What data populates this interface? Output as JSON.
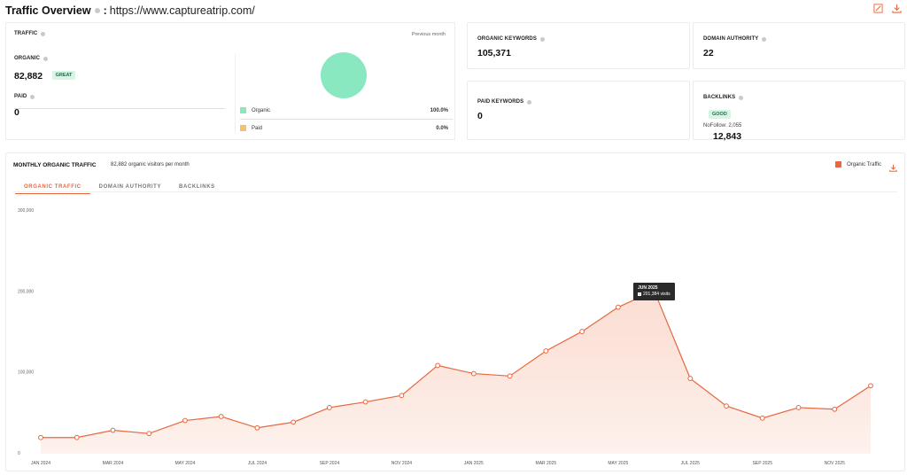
{
  "header": {
    "title": "Traffic Overview",
    "url": "https://www.captureatrip.com/"
  },
  "icons": {
    "edit": "edit-icon",
    "download": "download-icon",
    "info": "info-icon"
  },
  "colors": {
    "accent": "#e8673e",
    "organic": "#8ae8c1",
    "paid": "#f5c26b"
  },
  "traffic": {
    "label": "TRAFFIC",
    "previous_month": "Previous month",
    "organic_label": "ORGANIC",
    "organic_value": "82,882",
    "organic_badge": "GREAT",
    "paid_label": "PAID",
    "paid_value": "0",
    "legend": [
      {
        "name": "Organic",
        "pct": "100.0%"
      },
      {
        "name": "Paid",
        "pct": "0.0%"
      }
    ]
  },
  "metrics": {
    "organic_keywords": {
      "label": "ORGANIC KEYWORDS",
      "value": "105,371"
    },
    "domain_authority": {
      "label": "DOMAIN AUTHORITY",
      "value": "22"
    },
    "paid_keywords": {
      "label": "PAID KEYWORDS",
      "value": "0"
    },
    "backlinks": {
      "label": "BACKLINKS",
      "value": "12,843",
      "badge": "GOOD",
      "nofollow": "NoFollow: 2,055"
    }
  },
  "monthly": {
    "title": "MONTHLY ORGANIC TRAFFIC",
    "subtitle": "82,882 organic visitors per month",
    "legend": "Organic Traffic",
    "tabs": [
      "ORGANIC TRAFFIC",
      "DOMAIN AUTHORITY",
      "BACKLINKS"
    ],
    "tooltip": {
      "month": "JUN 2025",
      "value": "201,384 visits"
    }
  },
  "chart_data": {
    "type": "area",
    "series": [
      {
        "name": "Organic Traffic",
        "values": [
          20000,
          20000,
          29000,
          25000,
          41000,
          46000,
          32000,
          39000,
          57000,
          64000,
          72000,
          109000,
          99000,
          96000,
          127000,
          151000,
          181000,
          201384,
          93000,
          59000,
          44000,
          57000,
          55000,
          84000
        ]
      }
    ],
    "x": [
      "JAN 2024",
      "FEB 2024",
      "MAR 2024",
      "APR 2024",
      "MAY 2024",
      "JUN 2024",
      "JUL 2024",
      "AUG 2024",
      "SEP 2024",
      "OCT 2024",
      "NOV 2024",
      "DEC 2024",
      "JAN 2025",
      "FEB 2025",
      "MAR 2025",
      "APR 2025",
      "MAY 2025",
      "JUN 2025",
      "JUL 2025",
      "AUG 2025",
      "SEP 2025",
      "OCT 2025",
      "NOV 2025",
      "DEC 2025"
    ],
    "x_tick_labels": [
      "JAN 2024",
      "MAR 2024",
      "MAY 2024",
      "JUL 2024",
      "SEP 2024",
      "NOV 2024",
      "JAN 2025",
      "MAR 2025",
      "MAY 2025",
      "JUL 2025",
      "SEP 2025",
      "NOV 2025"
    ],
    "y_tick_labels": [
      "0",
      "100,000",
      "200,000",
      "300,000"
    ],
    "ylim": [
      0,
      300000
    ],
    "grid": false
  }
}
